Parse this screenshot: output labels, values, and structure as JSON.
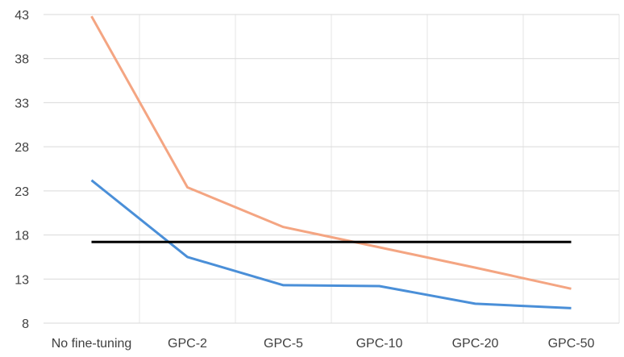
{
  "chart_data": {
    "type": "line",
    "title": "",
    "xlabel": "",
    "ylabel": "",
    "categories": [
      "No fine-tuning",
      "GPC-2",
      "GPC-5",
      "GPC-10",
      "GPC-20",
      "GPC-50"
    ],
    "ylim": [
      8,
      43
    ],
    "yticks": [
      8,
      13,
      18,
      23,
      28,
      33,
      38,
      43
    ],
    "grid": true,
    "legend": "none",
    "series": [
      {
        "color": "#F4A582",
        "values": [
          42.8,
          23.4,
          18.9,
          16.6,
          14.3,
          11.9
        ]
      },
      {
        "color": "#4A8FD8",
        "values": [
          24.2,
          15.5,
          12.3,
          12.2,
          10.2,
          9.7
        ]
      },
      {
        "color": "#000000",
        "values": [
          17.2,
          17.2,
          17.2,
          17.2,
          17.2,
          17.2
        ]
      }
    ]
  }
}
